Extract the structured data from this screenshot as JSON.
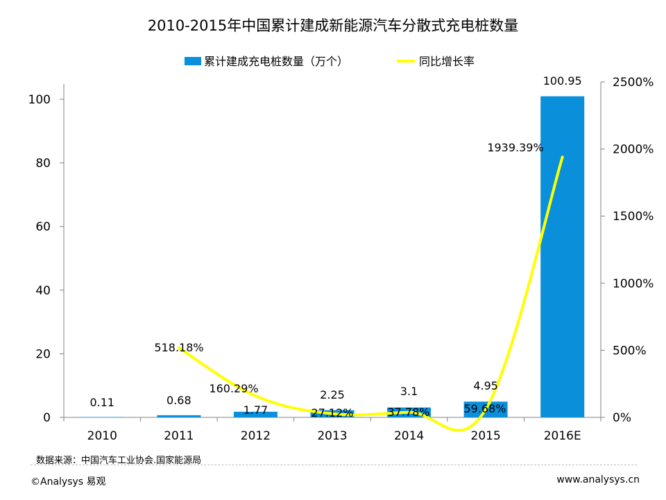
{
  "chart_data": {
    "type": "bar+line",
    "title": "2010-2015年中国累计建成新能源汽车分散式充电桩数量",
    "categories": [
      "2010",
      "2011",
      "2012",
      "2013",
      "2014",
      "2015",
      "2016E"
    ],
    "series": [
      {
        "name": "累计建成充电桩数量（万个）",
        "type": "bar",
        "axis": "left",
        "color": "#0a8fdb",
        "values": [
          0.11,
          0.68,
          1.77,
          2.25,
          3.1,
          4.95,
          100.95
        ],
        "labels": [
          "0.11",
          "0.68",
          "1.77",
          "2.25",
          "3.1",
          "4.95",
          "100.95"
        ]
      },
      {
        "name": "同比增长率",
        "type": "line",
        "axis": "right",
        "color": "#ffff00",
        "x": [
          "2011",
          "2012",
          "2013",
          "2014",
          "2015",
          "2016E"
        ],
        "values": [
          518.18,
          160.29,
          27.12,
          37.78,
          59.68,
          1939.39
        ],
        "labels": [
          "518.18%",
          "160.29%",
          "27.12%",
          "37.78%",
          "59.68%",
          "1939.39%"
        ]
      }
    ],
    "y_left": {
      "min": 0,
      "max": 100,
      "ticks": [
        "0",
        "20",
        "40",
        "60",
        "80",
        "100"
      ]
    },
    "y_right": {
      "min": 0,
      "max": 2500,
      "ticks": [
        "0%",
        "500%",
        "1000%",
        "1500%",
        "2000%",
        "2500%"
      ]
    },
    "legend_position": "top",
    "grid": false
  },
  "footer": {
    "source": "数据来源：中国汽车工业协会.国家能源局",
    "copyright": "©Analysys 易观",
    "website": "www.analysys.cn"
  }
}
